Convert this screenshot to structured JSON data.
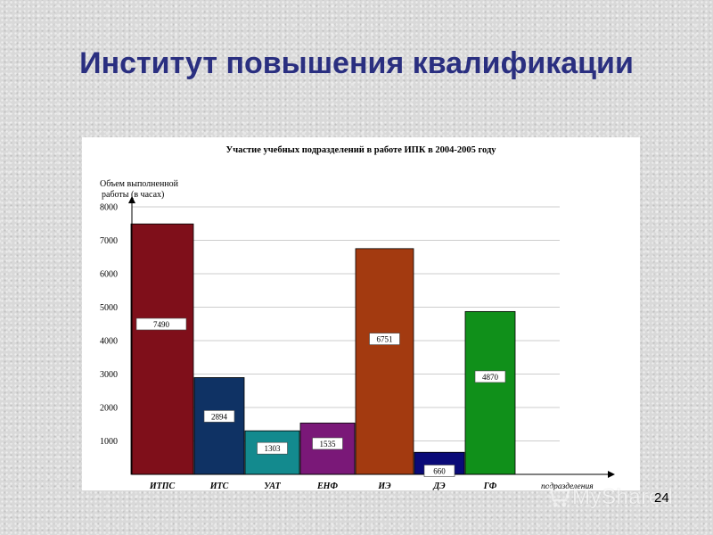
{
  "slide": {
    "title": "Институт повышения квалификации",
    "page_number": "24"
  },
  "watermark": {
    "text": "MyShared",
    "icon": "cart-icon"
  },
  "chart_data": {
    "type": "bar",
    "title": "Участие учебных подразделений в работе ИПК в 2004-2005 году",
    "ylabel_line1": "Объем выполненной",
    "ylabel_line2": "работы (в часах)",
    "xlabel": "подразделения",
    "ylim": [
      0,
      8000
    ],
    "yticks": [
      1000,
      2000,
      3000,
      4000,
      5000,
      6000,
      7000,
      8000
    ],
    "grid": true,
    "categories": [
      "ИТПС",
      "ИТС",
      "УАТ",
      "ЕНФ",
      "ИЭ",
      "ДЭ",
      "ГФ"
    ],
    "values": [
      7490,
      2894,
      1303,
      1535,
      6751,
      660,
      4870
    ],
    "colors": [
      "#7f0f1a",
      "#0f3264",
      "#138a8e",
      "#7a1878",
      "#a33a10",
      "#0a0a78",
      "#10901a"
    ]
  }
}
